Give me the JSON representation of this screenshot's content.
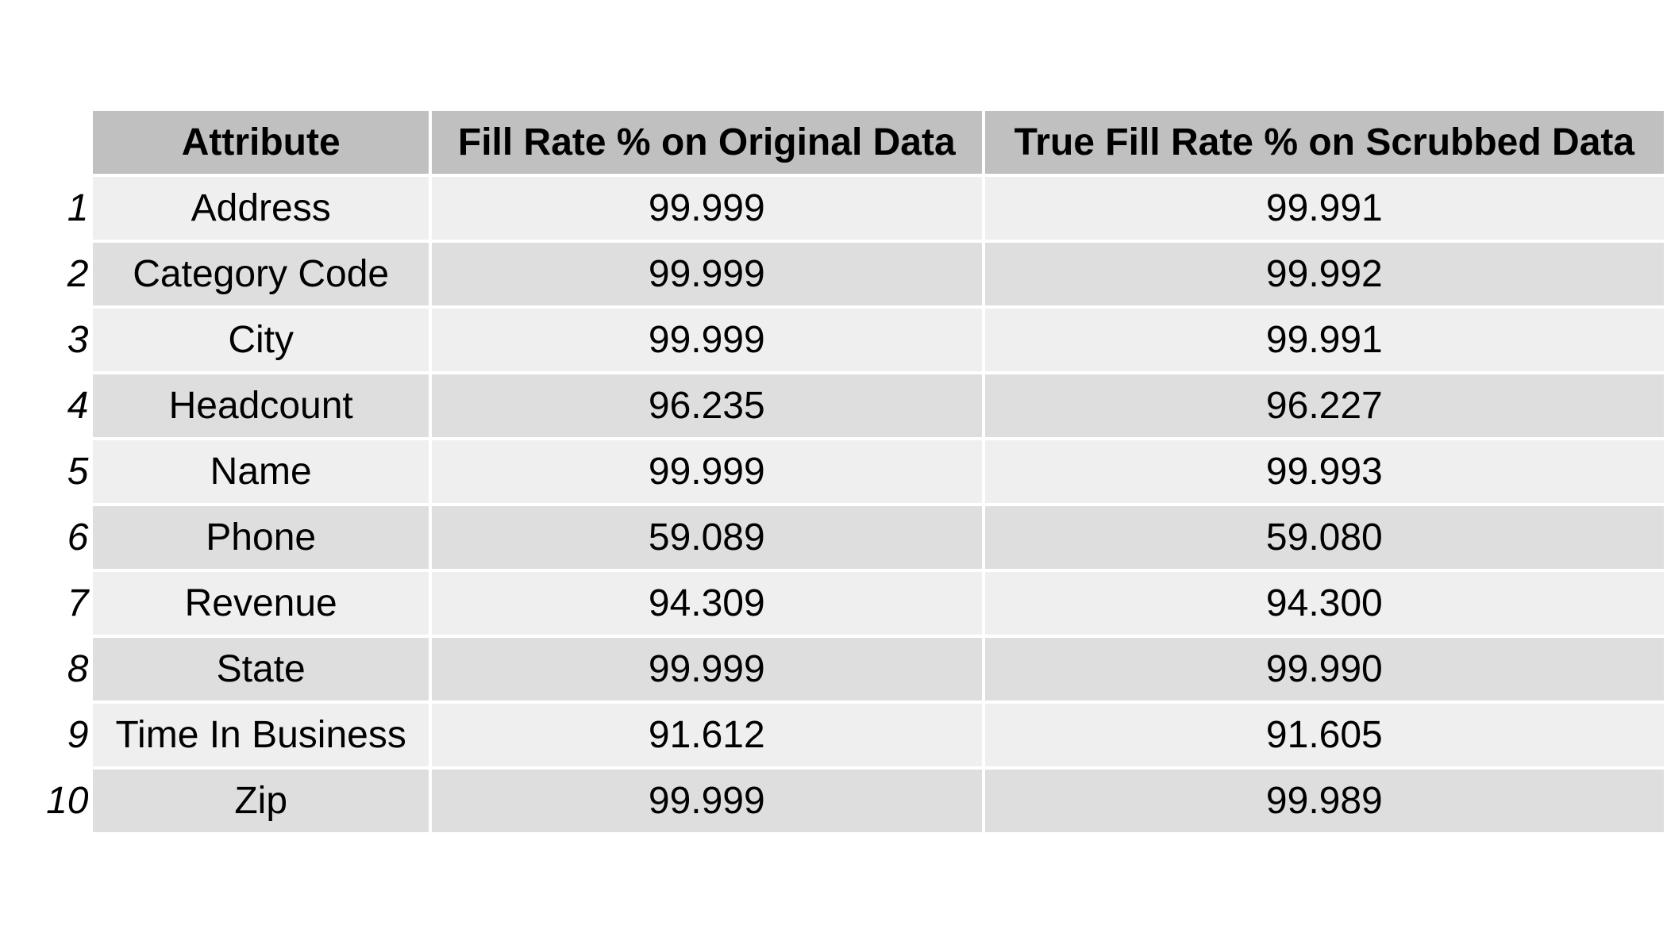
{
  "chart_data": {
    "type": "table",
    "columns": [
      "Attribute",
      "Fill Rate % on Original Data",
      "True Fill Rate % on Scrubbed Data"
    ],
    "rows": [
      {
        "index": "1",
        "attribute": "Address",
        "original": "99.999",
        "scrubbed": "99.991"
      },
      {
        "index": "2",
        "attribute": "Category Code",
        "original": "99.999",
        "scrubbed": "99.992"
      },
      {
        "index": "3",
        "attribute": "City",
        "original": "99.999",
        "scrubbed": "99.991"
      },
      {
        "index": "4",
        "attribute": "Headcount",
        "original": "96.235",
        "scrubbed": "96.227"
      },
      {
        "index": "5",
        "attribute": "Name",
        "original": "99.999",
        "scrubbed": "99.993"
      },
      {
        "index": "6",
        "attribute": "Phone",
        "original": "59.089",
        "scrubbed": "59.080"
      },
      {
        "index": "7",
        "attribute": "Revenue",
        "original": "94.309",
        "scrubbed": "94.300"
      },
      {
        "index": "8",
        "attribute": "State",
        "original": "99.999",
        "scrubbed": "99.990"
      },
      {
        "index": "9",
        "attribute": "Time In Business",
        "original": "91.612",
        "scrubbed": "91.605"
      },
      {
        "index": "10",
        "attribute": "Zip",
        "original": "99.999",
        "scrubbed": "99.989"
      }
    ]
  },
  "colors": {
    "header_bg": "#c0c0c0",
    "row_light": "#efefef",
    "row_dark": "#dedede"
  }
}
